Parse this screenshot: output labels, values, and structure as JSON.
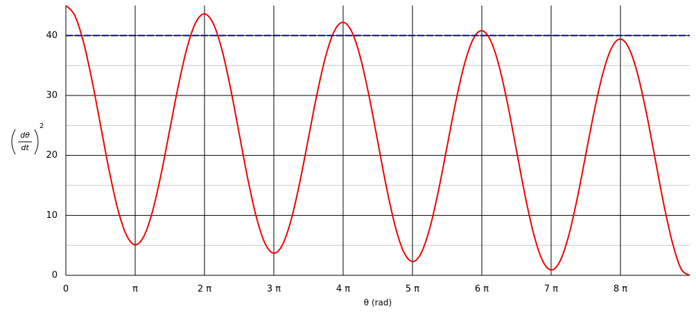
{
  "chart_data": {
    "type": "line",
    "ylabel": {
      "numerator": "dθ",
      "denominator": "dt",
      "exponent": "2"
    },
    "xlabel": "θ (rad)",
    "xlim": [
      0,
      28.274
    ],
    "ylim": [
      0,
      45
    ],
    "xticks": [
      0,
      {
        "value": 3.142,
        "label": "π"
      },
      {
        "value": 6.283,
        "label": "2 π"
      },
      {
        "value": 9.425,
        "label": "3 π"
      },
      {
        "value": 12.566,
        "label": "4 π"
      },
      {
        "value": 15.708,
        "label": "5 π"
      },
      {
        "value": 18.85,
        "label": "6 π"
      },
      {
        "value": 21.991,
        "label": "7 π"
      },
      {
        "value": 25.133,
        "label": "8 π"
      }
    ],
    "yticks": [
      0,
      10,
      20,
      30,
      40
    ],
    "yminor": [
      5,
      15,
      25,
      35
    ],
    "grid": true,
    "series": [
      {
        "color": "#ee0000",
        "dashed": false,
        "x": [
          0,
          0.393,
          0.785,
          1.178,
          1.571,
          1.963,
          2.356,
          2.749,
          3.142,
          3.534,
          3.927,
          4.32,
          4.712,
          5.105,
          5.498,
          5.89,
          6.283,
          6.676,
          7.069,
          7.461,
          7.854,
          8.247,
          8.639,
          9.032,
          9.425,
          9.817,
          10.21,
          10.603,
          10.996,
          11.388,
          11.781,
          12.174,
          12.566,
          12.959,
          13.352,
          13.744,
          14.137,
          14.53,
          14.923,
          15.315,
          15.708,
          16.101,
          16.493,
          16.886,
          17.279,
          17.671,
          18.064,
          18.457,
          18.85,
          19.242,
          19.635,
          20.028,
          20.42,
          20.813,
          21.206,
          21.598,
          21.991,
          22.384,
          22.777,
          23.169,
          23.562,
          23.955,
          24.347,
          24.74,
          25.133,
          25.525,
          25.918,
          26.311,
          26.704,
          27.096,
          27.489,
          27.882,
          28.274
        ],
        "values": [
          45,
          43.42,
          39.08,
          32.64,
          25.05,
          17.46,
          11.02,
          6.68,
          5.1,
          6.51,
          10.67,
          16.94,
          24.35,
          31.76,
          38.03,
          42.19,
          43.6,
          42.02,
          37.68,
          31.24,
          23.65,
          16.06,
          9.62,
          5.28,
          3.7,
          5.1,
          9.27,
          15.54,
          22.95,
          30.36,
          36.63,
          40.8,
          42.2,
          40.62,
          36.28,
          29.84,
          22.25,
          14.66,
          8.22,
          3.88,
          2.3,
          3.7,
          7.87,
          14.14,
          21.55,
          28.96,
          35.23,
          39.4,
          40.8,
          39.22,
          34.88,
          28.44,
          20.85,
          13.26,
          6.82,
          2.48,
          0.9,
          2.3,
          6.47,
          12.74,
          20.15,
          27.56,
          33.83,
          38,
          39.4,
          37.82,
          33.48,
          27.04,
          19.45,
          11.86,
          5.42,
          1.08,
          0
        ]
      },
      {
        "color": "#0000aa",
        "dashed": true,
        "x": [
          0,
          28.274
        ],
        "values": [
          40,
          40
        ]
      }
    ]
  }
}
